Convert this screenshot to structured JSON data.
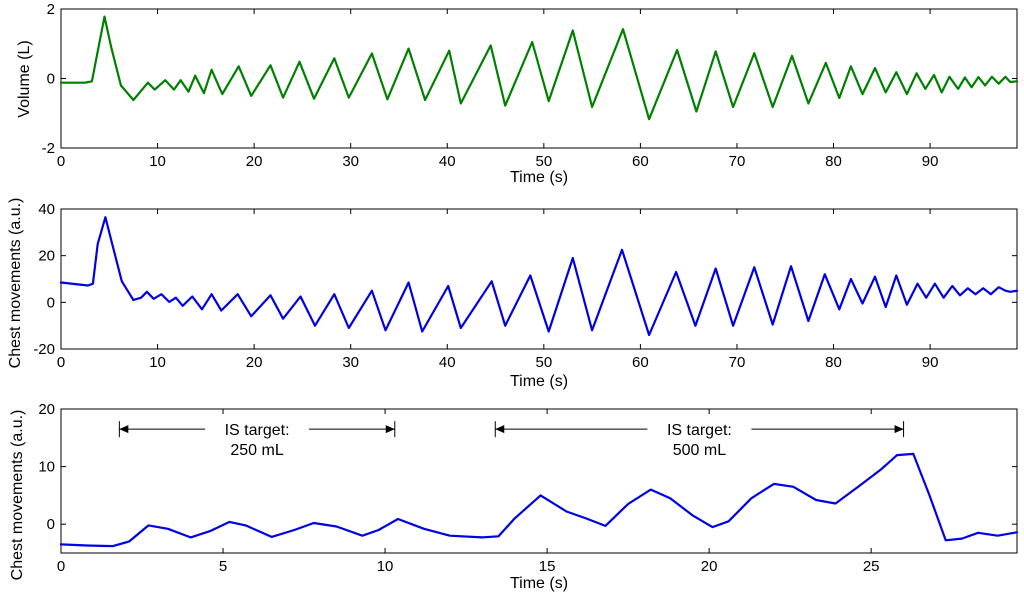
{
  "chart_data": [
    {
      "type": "line",
      "xlabel": "Time (s)",
      "ylabel": "Volume (L)",
      "xlim": [
        0,
        99
      ],
      "ylim": [
        -2,
        2
      ],
      "xticks": [
        0,
        10,
        20,
        30,
        40,
        50,
        60,
        70,
        80,
        90
      ],
      "yticks": [
        -2,
        0,
        2
      ],
      "grid": false,
      "series": [
        {
          "color": "#008000",
          "points": [
            [
              0,
              -0.12
            ],
            [
              2.5,
              -0.12
            ],
            [
              3.2,
              -0.08
            ],
            [
              4.5,
              1.78
            ],
            [
              5.2,
              0.9
            ],
            [
              6.2,
              -0.2
            ],
            [
              7.5,
              -0.62
            ],
            [
              9.0,
              -0.12
            ],
            [
              9.7,
              -0.32
            ],
            [
              10.8,
              -0.05
            ],
            [
              11.7,
              -0.32
            ],
            [
              12.4,
              -0.05
            ],
            [
              13.2,
              -0.38
            ],
            [
              13.9,
              0.08
            ],
            [
              14.8,
              -0.42
            ],
            [
              15.6,
              0.25
            ],
            [
              16.7,
              -0.45
            ],
            [
              18.4,
              0.35
            ],
            [
              19.7,
              -0.5
            ],
            [
              21.7,
              0.38
            ],
            [
              23.0,
              -0.55
            ],
            [
              24.7,
              0.48
            ],
            [
              26.2,
              -0.58
            ],
            [
              28.3,
              0.58
            ],
            [
              29.8,
              -0.55
            ],
            [
              32.2,
              0.72
            ],
            [
              33.8,
              -0.6
            ],
            [
              36.0,
              0.86
            ],
            [
              37.7,
              -0.62
            ],
            [
              40.2,
              0.8
            ],
            [
              41.4,
              -0.72
            ],
            [
              44.5,
              0.95
            ],
            [
              46.0,
              -0.78
            ],
            [
              48.8,
              1.05
            ],
            [
              50.5,
              -0.65
            ],
            [
              53.0,
              1.38
            ],
            [
              55.0,
              -0.82
            ],
            [
              58.2,
              1.42
            ],
            [
              60.9,
              -1.17
            ],
            [
              63.8,
              0.82
            ],
            [
              65.8,
              -0.95
            ],
            [
              67.8,
              0.78
            ],
            [
              69.6,
              -0.82
            ],
            [
              71.8,
              0.73
            ],
            [
              73.7,
              -0.82
            ],
            [
              75.7,
              0.65
            ],
            [
              77.4,
              -0.72
            ],
            [
              79.2,
              0.45
            ],
            [
              80.6,
              -0.56
            ],
            [
              81.8,
              0.35
            ],
            [
              83.0,
              -0.45
            ],
            [
              84.3,
              0.3
            ],
            [
              85.4,
              -0.4
            ],
            [
              86.5,
              0.18
            ],
            [
              87.6,
              -0.45
            ],
            [
              88.6,
              0.15
            ],
            [
              89.5,
              -0.3
            ],
            [
              90.4,
              0.1
            ],
            [
              91.2,
              -0.4
            ],
            [
              92.0,
              0.05
            ],
            [
              92.9,
              -0.3
            ],
            [
              93.6,
              0.03
            ],
            [
              94.3,
              -0.25
            ],
            [
              95.0,
              0.04
            ],
            [
              95.7,
              -0.2
            ],
            [
              96.4,
              0.05
            ],
            [
              97.1,
              -0.15
            ],
            [
              97.8,
              0.05
            ],
            [
              98.3,
              -0.1
            ],
            [
              99.0,
              -0.08
            ]
          ]
        }
      ]
    },
    {
      "type": "line",
      "xlabel": "Time (s)",
      "ylabel": "Chest movements (a.u.)",
      "xlim": [
        0,
        99
      ],
      "ylim": [
        -20,
        40
      ],
      "xticks": [
        0,
        10,
        20,
        30,
        40,
        50,
        60,
        70,
        80,
        90
      ],
      "yticks": [
        -20,
        0,
        20,
        40
      ],
      "grid": false,
      "series": [
        {
          "color": "#0000e6",
          "points": [
            [
              0,
              8.5
            ],
            [
              2.8,
              7.2
            ],
            [
              3.3,
              8
            ],
            [
              3.8,
              25
            ],
            [
              4.6,
              36.5
            ],
            [
              5.3,
              25
            ],
            [
              6.3,
              9
            ],
            [
              7.5,
              1
            ],
            [
              8.3,
              2
            ],
            [
              8.9,
              4.5
            ],
            [
              9.6,
              1.5
            ],
            [
              10.4,
              3.5
            ],
            [
              11.2,
              0.2
            ],
            [
              11.9,
              2
            ],
            [
              12.6,
              -1.5
            ],
            [
              13.6,
              2.5
            ],
            [
              14.6,
              -3
            ],
            [
              15.6,
              3.5
            ],
            [
              16.6,
              -3.5
            ],
            [
              18.3,
              3.5
            ],
            [
              19.7,
              -6
            ],
            [
              21.7,
              3
            ],
            [
              23.0,
              -7
            ],
            [
              24.8,
              2.5
            ],
            [
              26.3,
              -10
            ],
            [
              28.3,
              3.5
            ],
            [
              29.8,
              -11
            ],
            [
              32.2,
              5
            ],
            [
              33.6,
              -12
            ],
            [
              36.0,
              8.5
            ],
            [
              37.4,
              -12.5
            ],
            [
              40.1,
              7
            ],
            [
              41.4,
              -11
            ],
            [
              44.6,
              9
            ],
            [
              46.0,
              -10
            ],
            [
              48.6,
              11.5
            ],
            [
              50.5,
              -12.5
            ],
            [
              53.0,
              19
            ],
            [
              55.0,
              -12
            ],
            [
              58.1,
              22.5
            ],
            [
              60.9,
              -14
            ],
            [
              63.7,
              13
            ],
            [
              65.7,
              -10
            ],
            [
              67.8,
              14.5
            ],
            [
              69.6,
              -10
            ],
            [
              71.8,
              15
            ],
            [
              73.7,
              -9.5
            ],
            [
              75.6,
              15.5
            ],
            [
              77.4,
              -8
            ],
            [
              79.1,
              12
            ],
            [
              80.6,
              -3
            ],
            [
              81.8,
              10
            ],
            [
              83.0,
              -0.5
            ],
            [
              84.3,
              11
            ],
            [
              85.4,
              -2
            ],
            [
              86.5,
              11.5
            ],
            [
              87.6,
              -1
            ],
            [
              88.7,
              8
            ],
            [
              89.6,
              2
            ],
            [
              90.5,
              8
            ],
            [
              91.4,
              2
            ],
            [
              92.3,
              7
            ],
            [
              93.1,
              3
            ],
            [
              93.9,
              6
            ],
            [
              94.7,
              3.5
            ],
            [
              95.5,
              6
            ],
            [
              96.3,
              3.5
            ],
            [
              97.1,
              6.5
            ],
            [
              97.8,
              5
            ],
            [
              98.3,
              4.5
            ],
            [
              99.0,
              5
            ]
          ]
        }
      ]
    },
    {
      "type": "line",
      "xlabel": "Time (s)",
      "ylabel": "Chest movements (a.u.)",
      "xlim": [
        0,
        29.5
      ],
      "ylim": [
        -5,
        20
      ],
      "xticks": [
        0,
        5,
        10,
        15,
        20,
        25
      ],
      "yticks": [
        0,
        10,
        20
      ],
      "grid": false,
      "annotations": [
        {
          "text_lines": [
            "IS target:",
            "250 mL"
          ],
          "x_start": 1.8,
          "x_end": 10.3,
          "y": 16.5
        },
        {
          "text_lines": [
            "IS target:",
            "500 mL"
          ],
          "x_start": 13.4,
          "x_end": 26.0,
          "y": 16.5
        }
      ],
      "series": [
        {
          "color": "#0000e6",
          "points": [
            [
              0,
              -3.5
            ],
            [
              0.8,
              -3.7
            ],
            [
              1.6,
              -3.8
            ],
            [
              2.1,
              -3.0
            ],
            [
              2.7,
              -0.2
            ],
            [
              3.3,
              -0.8
            ],
            [
              4.0,
              -2.3
            ],
            [
              4.6,
              -1.2
            ],
            [
              5.2,
              0.4
            ],
            [
              5.7,
              -0.2
            ],
            [
              6.5,
              -2.2
            ],
            [
              7.2,
              -1.0
            ],
            [
              7.8,
              0.2
            ],
            [
              8.5,
              -0.4
            ],
            [
              9.3,
              -2.0
            ],
            [
              9.8,
              -1.0
            ],
            [
              10.4,
              0.9
            ],
            [
              11.2,
              -0.8
            ],
            [
              12.0,
              -2.0
            ],
            [
              13.0,
              -2.3
            ],
            [
              13.5,
              -2.1
            ],
            [
              14.0,
              1.0
            ],
            [
              14.8,
              5.0
            ],
            [
              15.6,
              2.2
            ],
            [
              16.2,
              1.0
            ],
            [
              16.8,
              -0.3
            ],
            [
              17.5,
              3.5
            ],
            [
              18.2,
              6.0
            ],
            [
              18.8,
              4.5
            ],
            [
              19.5,
              1.5
            ],
            [
              20.1,
              -0.5
            ],
            [
              20.6,
              0.5
            ],
            [
              21.3,
              4.5
            ],
            [
              22.0,
              7.0
            ],
            [
              22.6,
              6.5
            ],
            [
              23.3,
              4.2
            ],
            [
              23.9,
              3.6
            ],
            [
              24.6,
              6.5
            ],
            [
              25.3,
              9.5
            ],
            [
              25.8,
              12.0
            ],
            [
              26.3,
              12.2
            ],
            [
              26.8,
              5.0
            ],
            [
              27.3,
              -2.8
            ],
            [
              27.8,
              -2.5
            ],
            [
              28.3,
              -1.5
            ],
            [
              28.9,
              -2.0
            ],
            [
              29.5,
              -1.4
            ]
          ]
        }
      ]
    }
  ]
}
